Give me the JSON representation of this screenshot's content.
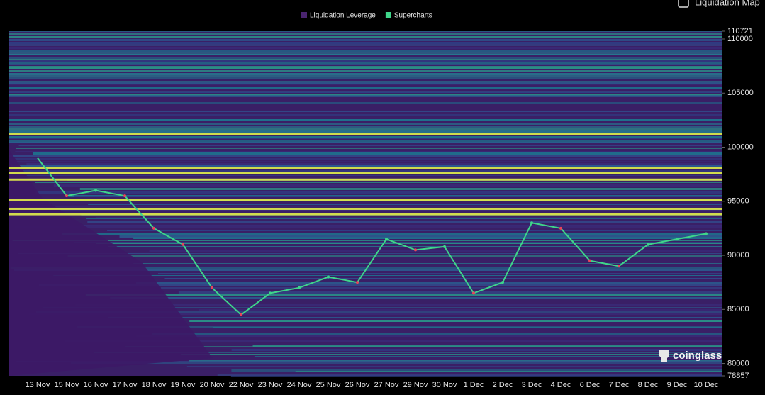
{
  "chart_data": {
    "type": "liquidation-heatmap",
    "toggle_label": "Liquidation Map",
    "watermark": "coinglass",
    "categories": [
      "13 Nov",
      "15 Nov",
      "16 Nov",
      "17 Nov",
      "18 Nov",
      "19 Nov",
      "20 Nov",
      "22 Nov",
      "23 Nov",
      "24 Nov",
      "25 Nov",
      "26 Nov",
      "27 Nov",
      "29 Nov",
      "30 Nov",
      "1 Dec",
      "2 Dec",
      "3 Dec",
      "4 Dec",
      "6 Dec",
      "7 Dec",
      "8 Dec",
      "9 Dec",
      "10 Dec"
    ],
    "levels": {
      "name": "Liquidation Leverage",
      "color": "#4a2470",
      "highlight_color": "#e2ef4a",
      "values": [
        101200,
        98100,
        97600,
        97000,
        95100,
        94300,
        93800
      ]
    },
    "series": [
      {
        "name": "Supercharts",
        "color": "#3fd68a",
        "values": [
          99000,
          95500,
          96000,
          95500,
          92500,
          91000,
          87000,
          84500,
          86500,
          87000,
          88000,
          87500,
          91500,
          90500,
          90800,
          86500,
          87500,
          93000,
          92500,
          89500,
          89000,
          91000,
          91500,
          92000
        ]
      }
    ],
    "ylim": [
      78857,
      110721
    ],
    "yticks": [
      78857,
      80000,
      85000,
      90000,
      95000,
      100000,
      105000,
      110000,
      110721
    ]
  }
}
